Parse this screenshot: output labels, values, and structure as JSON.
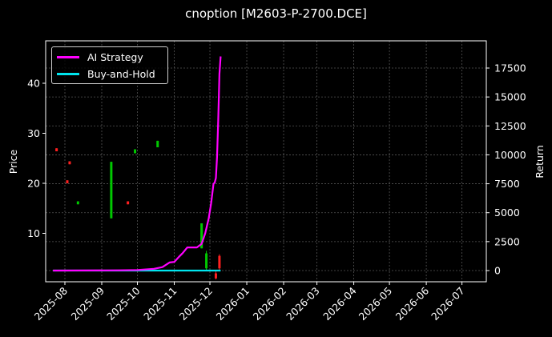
{
  "chart_data": {
    "type": "line",
    "title": "cnoption [M2603-P-2700.DCE]",
    "xlabel": "",
    "ylabel": "Price",
    "ylabel_right": "Return",
    "x_ticks": [
      "2025-08",
      "2025-09",
      "2025-10",
      "2025-11",
      "2025-12",
      "2026-01",
      "2026-02",
      "2026-03",
      "2026-04",
      "2026-05",
      "2026-06",
      "2026-07"
    ],
    "y_ticks_left": [
      10,
      20,
      30,
      40
    ],
    "y_ticks_right": [
      0,
      2500,
      5000,
      7500,
      10000,
      12500,
      15000,
      17500
    ],
    "ylim_left": [
      0,
      47
    ],
    "ylim_right": [
      -800,
      19000
    ],
    "grid": true,
    "legend_position": "upper left",
    "legend": [
      "AI Strategy",
      "Buy-and-Hold"
    ],
    "series": [
      {
        "name": "AI Strategy",
        "axis": "right",
        "color": "#ff00ff",
        "x": [
          "2025-07-22",
          "2025-08-15",
          "2025-09-15",
          "2025-10-01",
          "2025-10-15",
          "2025-10-22",
          "2025-10-28",
          "2025-11-01",
          "2025-11-05",
          "2025-11-08",
          "2025-11-12",
          "2025-11-20",
          "2025-11-24",
          "2025-11-27",
          "2025-11-30",
          "2025-12-02",
          "2025-12-04",
          "2025-12-05",
          "2025-12-06",
          "2025-12-07",
          "2025-12-08",
          "2025-12-09",
          "2025-12-10"
        ],
        "values": [
          0,
          5,
          20,
          50,
          150,
          300,
          700,
          750,
          1200,
          1500,
          2000,
          2000,
          2300,
          3200,
          4500,
          5800,
          7500,
          7600,
          8000,
          9800,
          13000,
          17000,
          18500
        ]
      },
      {
        "name": "Buy-and-Hold",
        "axis": "right",
        "color": "#00e5ee",
        "x": [
          "2025-07-22",
          "2025-12-10"
        ],
        "values": [
          0,
          0
        ]
      }
    ],
    "candles": {
      "axis": "left",
      "up_color": "#00c800",
      "down_color": "#ff2020",
      "items": [
        {
          "x": "2025-07-25",
          "open": 27.0,
          "close": 26.4,
          "high": 27.0,
          "low": 26.4
        },
        {
          "x": "2025-08-03",
          "open": 20.6,
          "close": 20.0,
          "high": 20.6,
          "low": 20.0
        },
        {
          "x": "2025-08-05",
          "open": 24.4,
          "close": 23.8,
          "high": 24.4,
          "low": 23.8
        },
        {
          "x": "2025-08-12",
          "open": 15.8,
          "close": 16.4,
          "high": 16.4,
          "low": 15.8
        },
        {
          "x": "2025-09-09",
          "open": 13.0,
          "close": 24.3,
          "high": 24.3,
          "low": 13.0
        },
        {
          "x": "2025-09-23",
          "open": 16.4,
          "close": 15.8,
          "high": 16.4,
          "low": 15.8
        },
        {
          "x": "2025-09-29",
          "open": 26.0,
          "close": 26.8,
          "high": 26.8,
          "low": 26.0
        },
        {
          "x": "2025-10-18",
          "open": 27.2,
          "close": 28.5,
          "high": 28.5,
          "low": 27.2
        },
        {
          "x": "2025-11-24",
          "open": 7.0,
          "close": 12.0,
          "high": 12.0,
          "low": 7.0
        },
        {
          "x": "2025-11-28",
          "open": 3.0,
          "close": 6.0,
          "high": 6.5,
          "low": 2.5
        },
        {
          "x": "2025-12-06",
          "open": 2.0,
          "close": 1.0,
          "high": 2.5,
          "low": 0.8
        },
        {
          "x": "2025-12-09",
          "open": 5.5,
          "close": 3.0,
          "high": 5.8,
          "low": 2.6
        }
      ]
    }
  }
}
